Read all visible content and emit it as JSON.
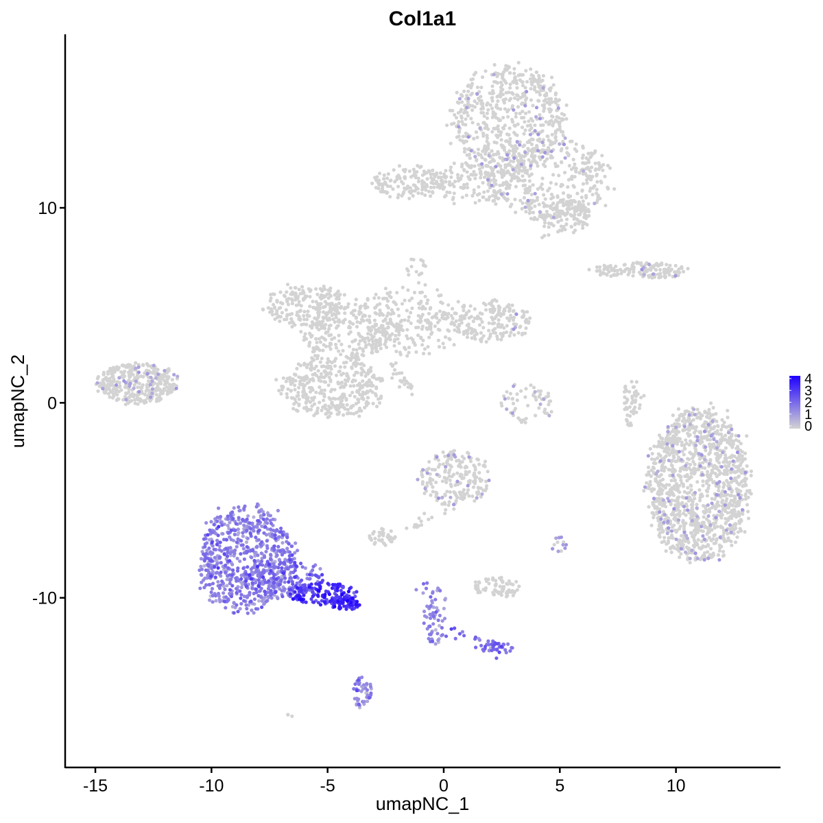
{
  "chart_data": {
    "type": "scatter",
    "title": "Col1a1",
    "xlabel": "umapNC_1",
    "ylabel": "umapNC_2",
    "xlim": [
      -16.3,
      14.5
    ],
    "ylim": [
      -18.7,
      18.9
    ],
    "x_ticks": [
      -15,
      -10,
      -5,
      0,
      5,
      10
    ],
    "y_ticks": [
      -10,
      0,
      10
    ],
    "x_tick_labels": [
      "-15",
      "-10",
      "-5",
      "0",
      "5",
      "10"
    ],
    "y_tick_labels": [
      "-10",
      "0",
      "10"
    ],
    "grid": false,
    "color_scale": {
      "low": "#d3d3d3",
      "high": "#1f00ff",
      "min": 0,
      "max": 4
    },
    "legend": {
      "position": "right",
      "ticks": [
        0,
        1,
        2,
        3,
        4
      ],
      "tick_labels": [
        "0",
        "1",
        "2",
        "3",
        "4"
      ]
    },
    "clusters": [
      {
        "cx": 11.0,
        "cy": -4.2,
        "sx": 1.25,
        "sy": 2.3,
        "n": 1300,
        "expr": 0.03,
        "shape": "ellipse"
      },
      {
        "cx": 2.8,
        "cy": 14.5,
        "sx": 1.4,
        "sy": 1.6,
        "n": 600,
        "expr": 0.02,
        "shape": "ellipse"
      },
      {
        "cx": 4.5,
        "cy": 11.5,
        "sx": 1.6,
        "sy": 1.2,
        "n": 350,
        "expr": 0.02,
        "shape": "ellipse"
      },
      {
        "cx": 5.3,
        "cy": 9.6,
        "sx": 0.6,
        "sy": 0.5,
        "n": 110,
        "expr": 0.0,
        "shape": "ellipse"
      },
      {
        "cx": -1.5,
        "cy": 11.3,
        "sx": 0.9,
        "sy": 0.5,
        "n": 130,
        "expr": 0.0,
        "shape": "ellipse"
      },
      {
        "cx": 1.3,
        "cy": 11.2,
        "sx": 1.0,
        "sy": 0.6,
        "n": 120,
        "expr": 0.0,
        "shape": "ellipse"
      },
      {
        "cx": -13.2,
        "cy": 1.0,
        "sx": 1.0,
        "sy": 0.6,
        "n": 380,
        "expr": 0.03,
        "shape": "ellipse"
      },
      {
        "cx": -6.0,
        "cy": 5.0,
        "sx": 1.0,
        "sy": 0.6,
        "n": 180,
        "expr": 0.0,
        "shape": "ellipse"
      },
      {
        "cx": -4.8,
        "cy": 0.8,
        "sx": 1.3,
        "sy": 0.9,
        "n": 380,
        "expr": 0.0,
        "shape": "ellipse"
      },
      {
        "cx": -4.0,
        "cy": 3.8,
        "sx": 1.3,
        "sy": 0.8,
        "n": 180,
        "expr": 0.0,
        "shape": "ellipse"
      },
      {
        "cx": -1.5,
        "cy": 4.2,
        "sx": 1.6,
        "sy": 1.0,
        "n": 220,
        "expr": 0.0,
        "shape": "ellipse"
      },
      {
        "cx": 2.0,
        "cy": 4.2,
        "sx": 1.0,
        "sy": 0.6,
        "n": 170,
        "expr": 0.02,
        "shape": "ellipse"
      },
      {
        "cx": 8.4,
        "cy": 6.8,
        "sx": 1.2,
        "sy": 0.25,
        "n": 120,
        "expr": 0.01,
        "shape": "ellipse"
      },
      {
        "cx": 3.6,
        "cy": 0.0,
        "sx": 0.7,
        "sy": 0.6,
        "n": 60,
        "expr": 0.03,
        "shape": "ellipse"
      },
      {
        "cx": 0.5,
        "cy": -3.8,
        "sx": 0.9,
        "sy": 0.8,
        "n": 200,
        "expr": 0.03,
        "shape": "ellipse"
      },
      {
        "cx": -2.6,
        "cy": -6.9,
        "sx": 0.35,
        "sy": 0.25,
        "n": 40,
        "expr": 0.0,
        "shape": "ellipse"
      },
      {
        "cx": 2.3,
        "cy": -9.5,
        "sx": 0.6,
        "sy": 0.3,
        "n": 70,
        "expr": 0.0,
        "shape": "ellipse"
      },
      {
        "cx": -8.5,
        "cy": -8.0,
        "sx": 1.2,
        "sy": 1.6,
        "n": 700,
        "expr": 1.5,
        "shape": "ellipse"
      },
      {
        "cx": -6.8,
        "cy": -9.0,
        "sx": 1.0,
        "sy": 0.6,
        "n": 160,
        "expr": 1.9,
        "shape": "ellipse"
      },
      {
        "cx": -5.2,
        "cy": -9.8,
        "sx": 0.8,
        "sy": 0.35,
        "n": 130,
        "expr": 2.9,
        "shape": "ellipse"
      },
      {
        "cx": -4.2,
        "cy": -10.3,
        "sx": 0.35,
        "sy": 0.2,
        "n": 60,
        "expr": 3.3,
        "shape": "ellipse"
      },
      {
        "cx": -3.5,
        "cy": -14.8,
        "sx": 0.25,
        "sy": 0.5,
        "n": 45,
        "expr": 1.5,
        "shape": "ellipse"
      },
      {
        "cx": -0.3,
        "cy": -11.0,
        "sx": 0.3,
        "sy": 0.9,
        "n": 45,
        "expr": 1.3,
        "shape": "ellipse"
      },
      {
        "cx": 2.3,
        "cy": -12.5,
        "sx": 0.4,
        "sy": 0.2,
        "n": 25,
        "expr": 2.0,
        "shape": "ellipse"
      },
      {
        "cx": 8.0,
        "cy": 0.0,
        "sx": 0.15,
        "sy": 0.7,
        "n": 30,
        "expr": 0.0,
        "shape": "ellipse"
      },
      {
        "cx": -6.6,
        "cy": -16.0,
        "sx": 0.1,
        "sy": 0.1,
        "n": 3,
        "expr": 0.0,
        "shape": "ellipse"
      },
      {
        "cx": -1.2,
        "cy": 7.0,
        "sx": 0.25,
        "sy": 0.3,
        "n": 15,
        "expr": 0.0,
        "shape": "ellipse"
      },
      {
        "cx": 5.0,
        "cy": -7.3,
        "sx": 0.2,
        "sy": 0.3,
        "n": 12,
        "expr": 0.2,
        "shape": "ellipse"
      }
    ],
    "bridges": [
      {
        "from": [
          -5.8,
          2.0
        ],
        "to": [
          -4.5,
          5.8
        ],
        "n": 50,
        "expr": 0.0
      },
      {
        "from": [
          -4.0,
          2.0
        ],
        "to": [
          -2.0,
          4.0
        ],
        "n": 40,
        "expr": 0.0
      },
      {
        "from": [
          -2.0,
          4.0
        ],
        "to": [
          0.5,
          4.5
        ],
        "n": 30,
        "expr": 0.0
      },
      {
        "from": [
          -2.3,
          1.9
        ],
        "to": [
          -1.3,
          0.6
        ],
        "n": 25,
        "expr": 0.0
      },
      {
        "from": [
          3.2,
          11.8
        ],
        "to": [
          4.5,
          8.2
        ],
        "n": 25,
        "expr": 0.0
      },
      {
        "from": [
          1.8,
          13.0
        ],
        "to": [
          -0.5,
          11.3
        ],
        "n": 25,
        "expr": 0.0
      },
      {
        "from": [
          7.5,
          6.9
        ],
        "to": [
          9.8,
          6.7
        ],
        "n": 25,
        "expr": 0.0
      },
      {
        "from": [
          0.5,
          -5.0
        ],
        "to": [
          -1.5,
          -6.5
        ],
        "n": 20,
        "expr": 0.0
      },
      {
        "from": [
          -1.0,
          -9.3
        ],
        "to": [
          -0.3,
          -12.0
        ],
        "n": 25,
        "expr": 1.2
      },
      {
        "from": [
          0.3,
          -11.7
        ],
        "to": [
          2.5,
          -12.7
        ],
        "n": 22,
        "expr": 1.8
      },
      {
        "from": [
          8.5,
          1.0
        ],
        "to": [
          7.9,
          -0.7
        ],
        "n": 20,
        "expr": 0.0
      }
    ]
  }
}
